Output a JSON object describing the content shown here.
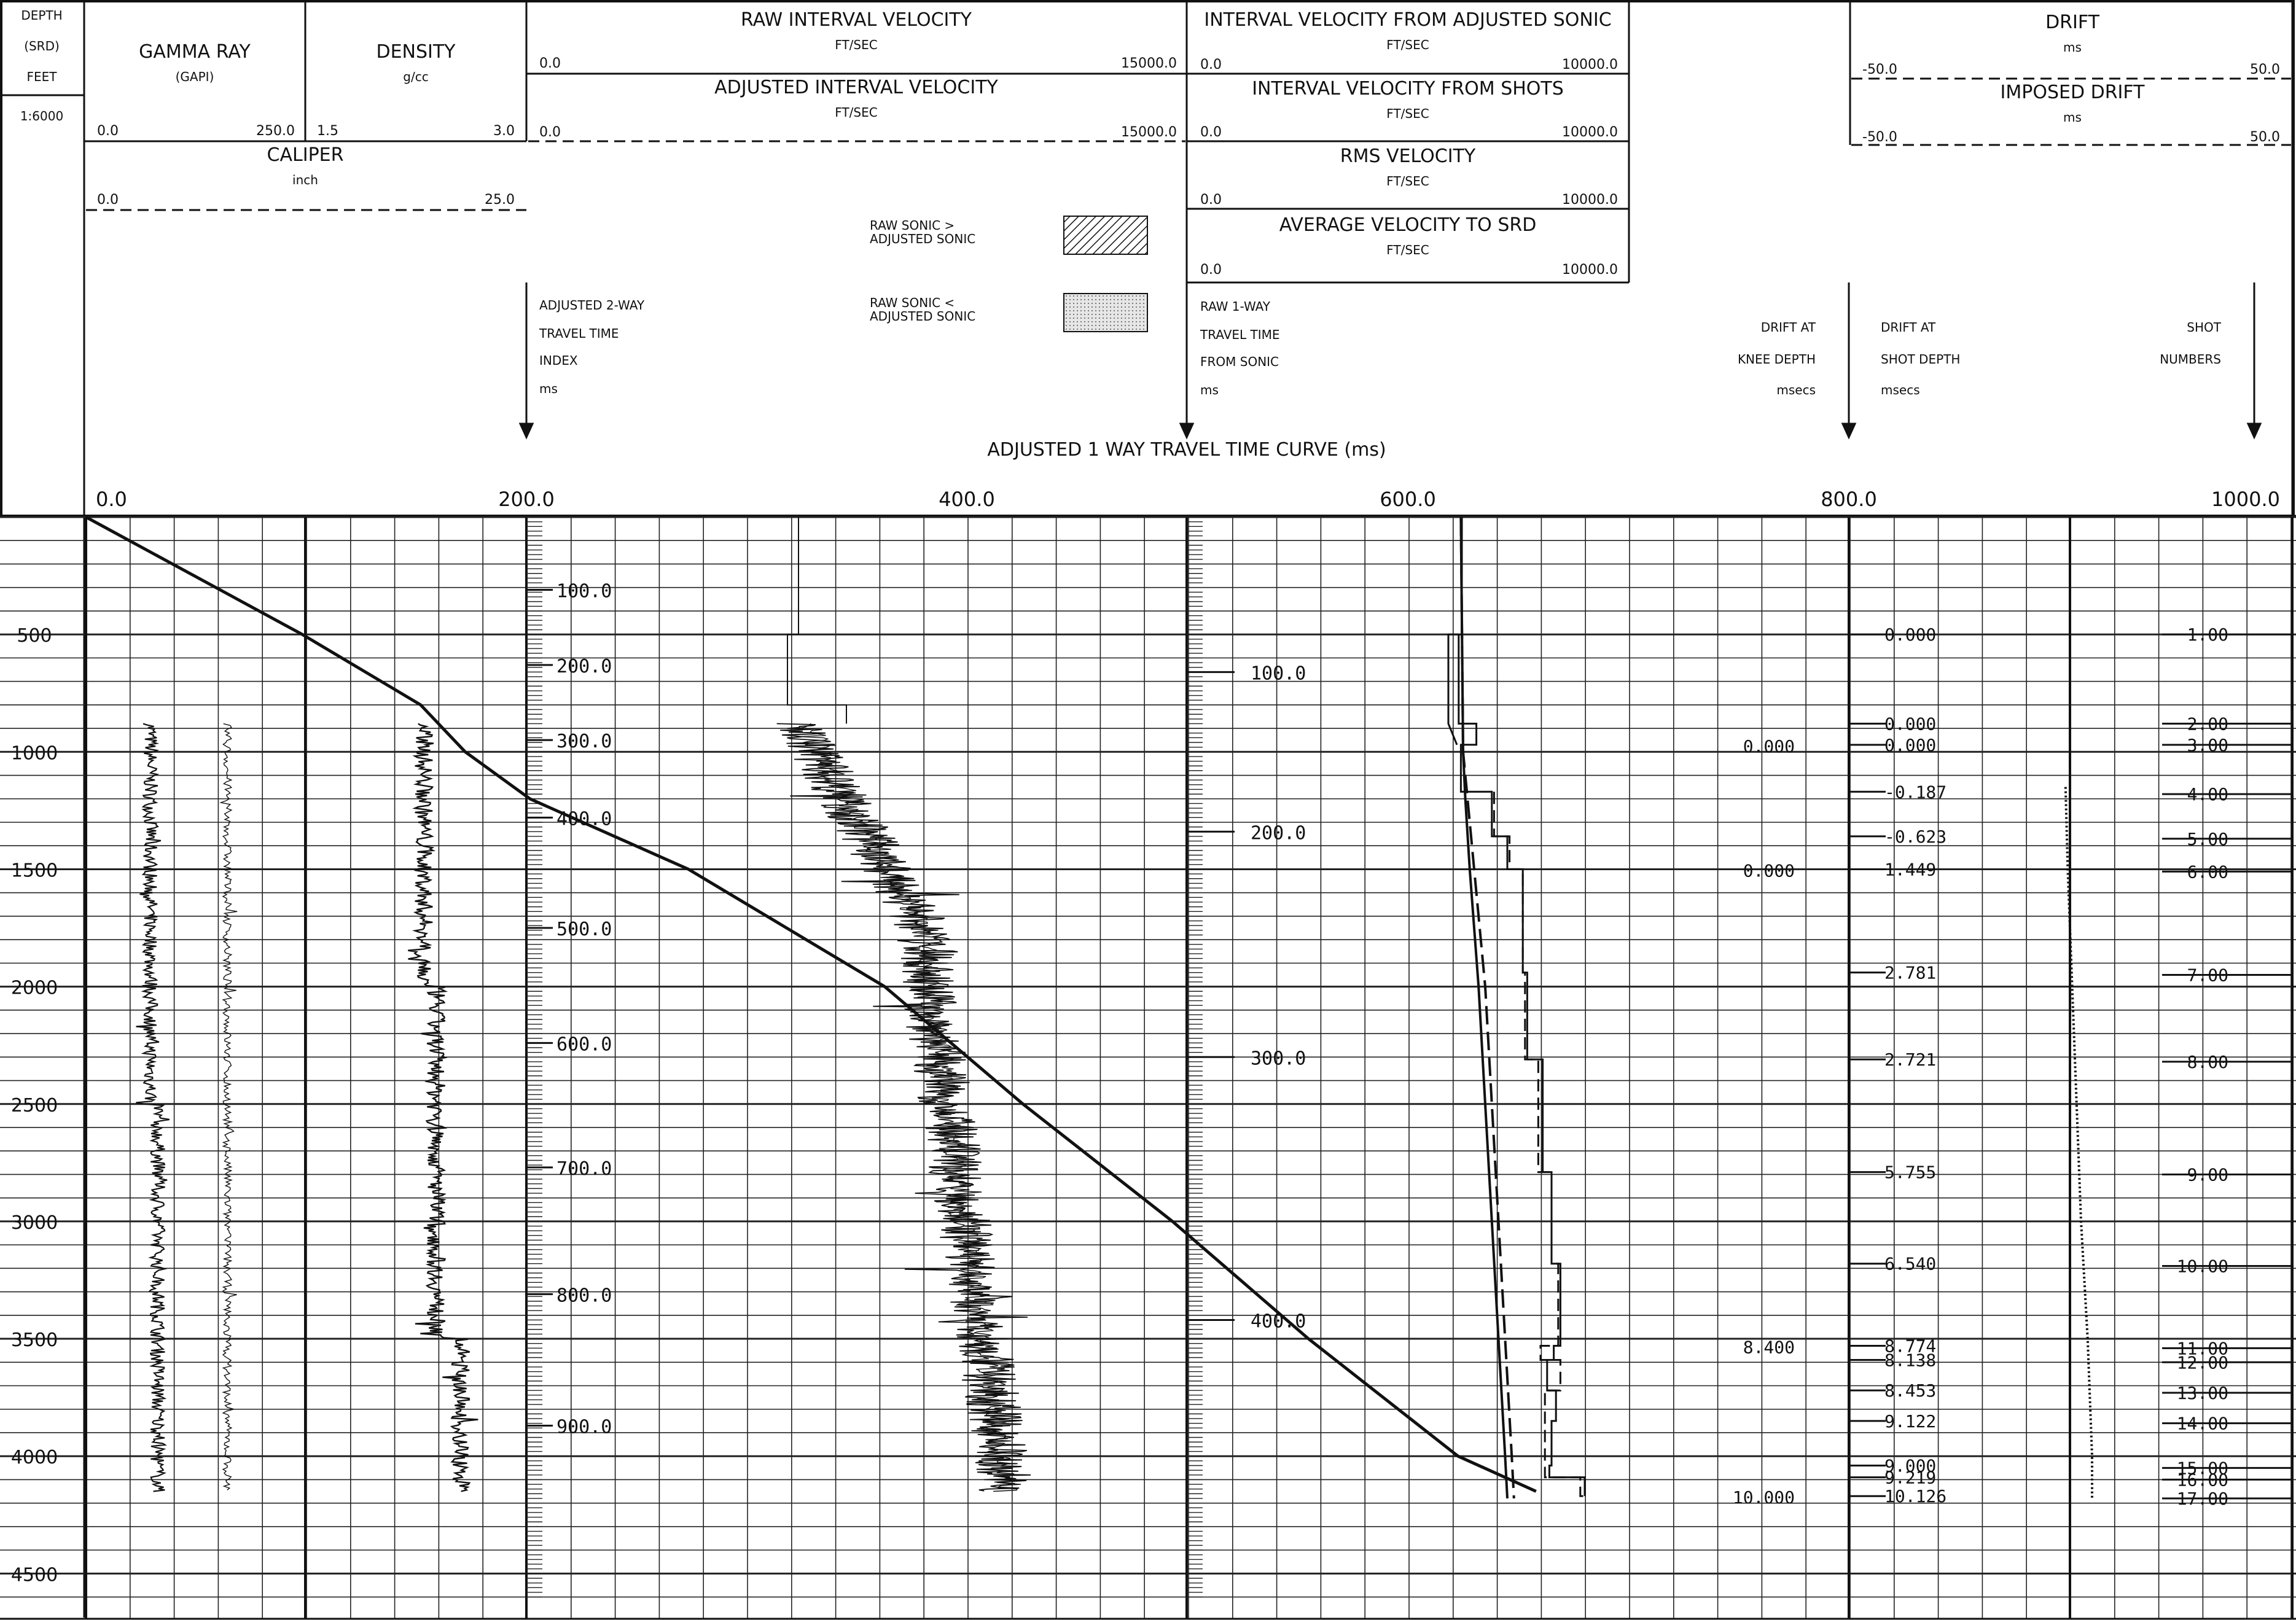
{
  "header": {
    "depth_labels": [
      "DEPTH",
      "(SRD)",
      "FEET",
      "1:6000"
    ],
    "gamma_ray": {
      "title": "GAMMA RAY",
      "unit": "(GAPI)",
      "min": "0.0",
      "max": "250.0"
    },
    "density": {
      "title": "DENSITY",
      "unit": "g/cc",
      "min": "1.5",
      "max": "3.0"
    },
    "caliper": {
      "title": "CALIPER",
      "unit": "inch",
      "min": "0.0",
      "max": "25.0"
    },
    "raw_interval_velocity": {
      "title": "RAW INTERVAL VELOCITY",
      "unit": "FT/SEC",
      "min": "0.0",
      "max": "15000.0"
    },
    "adjusted_interval_velocity": {
      "title": "ADJUSTED INTERVAL VELOCITY",
      "unit": "FT/SEC",
      "min": "0.0",
      "max": "15000.0"
    },
    "legend_greater": {
      "line1": "RAW SONIC >",
      "line2": "ADJUSTED SONIC"
    },
    "legend_less": {
      "line1": "RAW SONIC <",
      "line2": "ADJUSTED SONIC"
    },
    "adjusted_2way": {
      "line1": "ADJUSTED 2-WAY",
      "line2": "TRAVEL TIME",
      "line3": "INDEX",
      "line4": "ms"
    },
    "iv_adjusted_sonic": {
      "title": "INTERVAL VELOCITY FROM ADJUSTED SONIC",
      "unit": "FT/SEC",
      "min": "0.0",
      "max": "10000.0"
    },
    "iv_shots": {
      "title": "INTERVAL VELOCITY FROM SHOTS",
      "unit": "FT/SEC",
      "min": "0.0",
      "max": "10000.0"
    },
    "rms_velocity": {
      "title": "RMS VELOCITY",
      "unit": "FT/SEC",
      "min": "0.0",
      "max": "10000.0"
    },
    "avg_velocity": {
      "title": "AVERAGE VELOCITY TO SRD",
      "unit": "FT/SEC",
      "min": "0.0",
      "max": "10000.0"
    },
    "raw_1way": {
      "line1": "RAW 1-WAY",
      "line2": "TRAVEL TIME",
      "line3": "FROM SONIC",
      "line4": "ms"
    },
    "drift_knee": {
      "line1": "DRIFT AT",
      "line2": "KNEE DEPTH",
      "line3": "msecs"
    },
    "drift_shot": {
      "line1": "DRIFT AT",
      "line2": "SHOT DEPTH",
      "line3": "msecs"
    },
    "shot_numbers": {
      "line1": "SHOT",
      "line2": "NUMBERS"
    },
    "drift": {
      "title": "DRIFT",
      "unit": "ms",
      "min": "-50.0",
      "max": "50.0"
    },
    "imposed_drift": {
      "title": "IMPOSED DRIFT",
      "unit": "ms",
      "min": "-50.0",
      "max": "50.0"
    },
    "travel_time_curve": {
      "title": "ADJUSTED 1 WAY TRAVEL TIME CURVE (ms)",
      "ticks": [
        "0.0",
        "200.0",
        "400.0",
        "600.0",
        "800.0",
        "1000.0"
      ]
    }
  },
  "colors": {
    "ink": "#111111",
    "grid": "#222222",
    "paper": "#ffffff",
    "fill_greater": "#9a9a9a",
    "fill_less": "#d4d4d4"
  },
  "chart_data": {
    "type": "line",
    "title": "ADJUSTED 1 WAY TRAVEL TIME CURVE (ms)",
    "depth_axis": {
      "label": "DEPTH (SRD) FEET",
      "scale": "1:6000",
      "range": [
        0,
        4600
      ],
      "ticks": [
        500,
        1000,
        1500,
        2000,
        2500,
        3000,
        3500,
        4000,
        4500
      ]
    },
    "time_axis": {
      "range": [
        0,
        1000
      ],
      "ticks": [
        0,
        200,
        400,
        600,
        800,
        1000
      ]
    },
    "travel_time_curve": {
      "depth": [
        0,
        500,
        800,
        1000,
        1200,
        1500,
        2000,
        2500,
        3000,
        3500,
        4000,
        4150
      ],
      "time_ms": [
        0,
        97,
        150,
        170,
        199,
        270,
        358,
        420,
        487,
        548,
        615,
        650
      ]
    },
    "two_way_time_index": [
      {
        "label": "100.0",
        "depth": 310
      },
      {
        "label": "200.0",
        "depth": 630
      },
      {
        "label": "300.0",
        "depth": 950
      },
      {
        "label": "400.0",
        "depth": 1280
      },
      {
        "label": "500.0",
        "depth": 1750
      },
      {
        "label": "600.0",
        "depth": 2240
      },
      {
        "label": "700.0",
        "depth": 2770
      },
      {
        "label": "800.0",
        "depth": 3310
      },
      {
        "label": "900.0",
        "depth": 3870
      }
    ],
    "raw_one_way_time_index": [
      {
        "label": "100.0",
        "depth": 660
      },
      {
        "label": "200.0",
        "depth": 1340
      },
      {
        "label": "300.0",
        "depth": 2300
      },
      {
        "label": "400.0",
        "depth": 3420
      }
    ],
    "drift_at_knee_depth": [
      {
        "label": "0.000",
        "depth": 970
      },
      {
        "label": "0.000",
        "depth": 1500
      },
      {
        "label": "8.400",
        "depth": 3530
      },
      {
        "label": "10.000",
        "depth": 4170
      }
    ],
    "drift_at_shot_depth": [
      {
        "label": "0.000",
        "depth": 500
      },
      {
        "label": "0.000",
        "depth": 880
      },
      {
        "label": "0.000",
        "depth": 970
      },
      {
        "label": "-0.187",
        "depth": 1170
      },
      {
        "label": "-0.623",
        "depth": 1360
      },
      {
        "label": "1.449",
        "depth": 1500
      },
      {
        "label": "2.781",
        "depth": 1940
      },
      {
        "label": "2.721",
        "depth": 2310
      },
      {
        "label": "5.755",
        "depth": 2790
      },
      {
        "label": "6.540",
        "depth": 3180
      },
      {
        "label": "8.774",
        "depth": 3530
      },
      {
        "label": "8.138",
        "depth": 3590
      },
      {
        "label": "8.453",
        "depth": 3720
      },
      {
        "label": "9.122",
        "depth": 3850
      },
      {
        "label": "9.000",
        "depth": 4040
      },
      {
        "label": "9.219",
        "depth": 4090
      },
      {
        "label": "10.126",
        "depth": 4170
      }
    ],
    "shot_numbers": [
      {
        "label": "1.00",
        "depth": 500
      },
      {
        "label": "2.00",
        "depth": 880
      },
      {
        "label": "3.00",
        "depth": 970
      },
      {
        "label": "4.00",
        "depth": 1180
      },
      {
        "label": "5.00",
        "depth": 1370
      },
      {
        "label": "6.00",
        "depth": 1510
      },
      {
        "label": "7.00",
        "depth": 1950
      },
      {
        "label": "8.00",
        "depth": 2320
      },
      {
        "label": "9.00",
        "depth": 2800
      },
      {
        "label": "10.00",
        "depth": 3190
      },
      {
        "label": "11.00",
        "depth": 3540
      },
      {
        "label": "12.00",
        "depth": 3600
      },
      {
        "label": "13.00",
        "depth": 3730
      },
      {
        "label": "14.00",
        "depth": 3860
      },
      {
        "label": "15.00",
        "depth": 4050
      },
      {
        "label": "16.00",
        "depth": 4100
      },
      {
        "label": "17.00",
        "depth": 4180
      }
    ],
    "interval_velocity_shots_step": {
      "depth": [
        500,
        880,
        970,
        1170,
        1360,
        1500,
        1940,
        2310,
        2790,
        3180,
        3530,
        3590,
        3720,
        3850,
        4040,
        4090,
        4170
      ],
      "velocity": [
        6150,
        6550,
        6200,
        6900,
        7250,
        7600,
        7700,
        8050,
        8250,
        8450,
        8300,
        8150,
        8350,
        8250,
        8200,
        9000,
        9000
      ]
    },
    "interval_velocity_sonic_step": {
      "depth": [
        1170,
        1360,
        1500,
        1940,
        2310,
        2790,
        3180,
        3530,
        3590,
        3720,
        4090,
        4170
      ],
      "velocity": [
        6950,
        7300,
        7600,
        7650,
        7950,
        8250,
        8400,
        8000,
        8450,
        8100,
        8900,
        9000
      ]
    },
    "rms_velocity": {
      "depth": [
        0,
        1000,
        1200,
        1500,
        2000,
        2500,
        3000,
        3500,
        4000,
        4180
      ],
      "velocity": [
        6200,
        6250,
        6350,
        6500,
        6750,
        6900,
        7050,
        7200,
        7350,
        7400
      ]
    },
    "average_velocity": {
      "depth": [
        0,
        1000,
        1200,
        1500,
        2000,
        2500,
        3000,
        3500,
        4000,
        4180
      ],
      "velocity": [
        6200,
        6250,
        6300,
        6400,
        6600,
        6750,
        6900,
        7050,
        7200,
        7250
      ]
    },
    "drift_curve": {
      "depth": [
        1150,
        1500,
        2000,
        2500,
        3000,
        3500,
        4000,
        4180
      ],
      "drift_ms": [
        -1,
        -0.5,
        0.5,
        1.5,
        2.5,
        4,
        5,
        5
      ]
    },
    "logs_depth_range": [
      880,
      4150
    ]
  }
}
